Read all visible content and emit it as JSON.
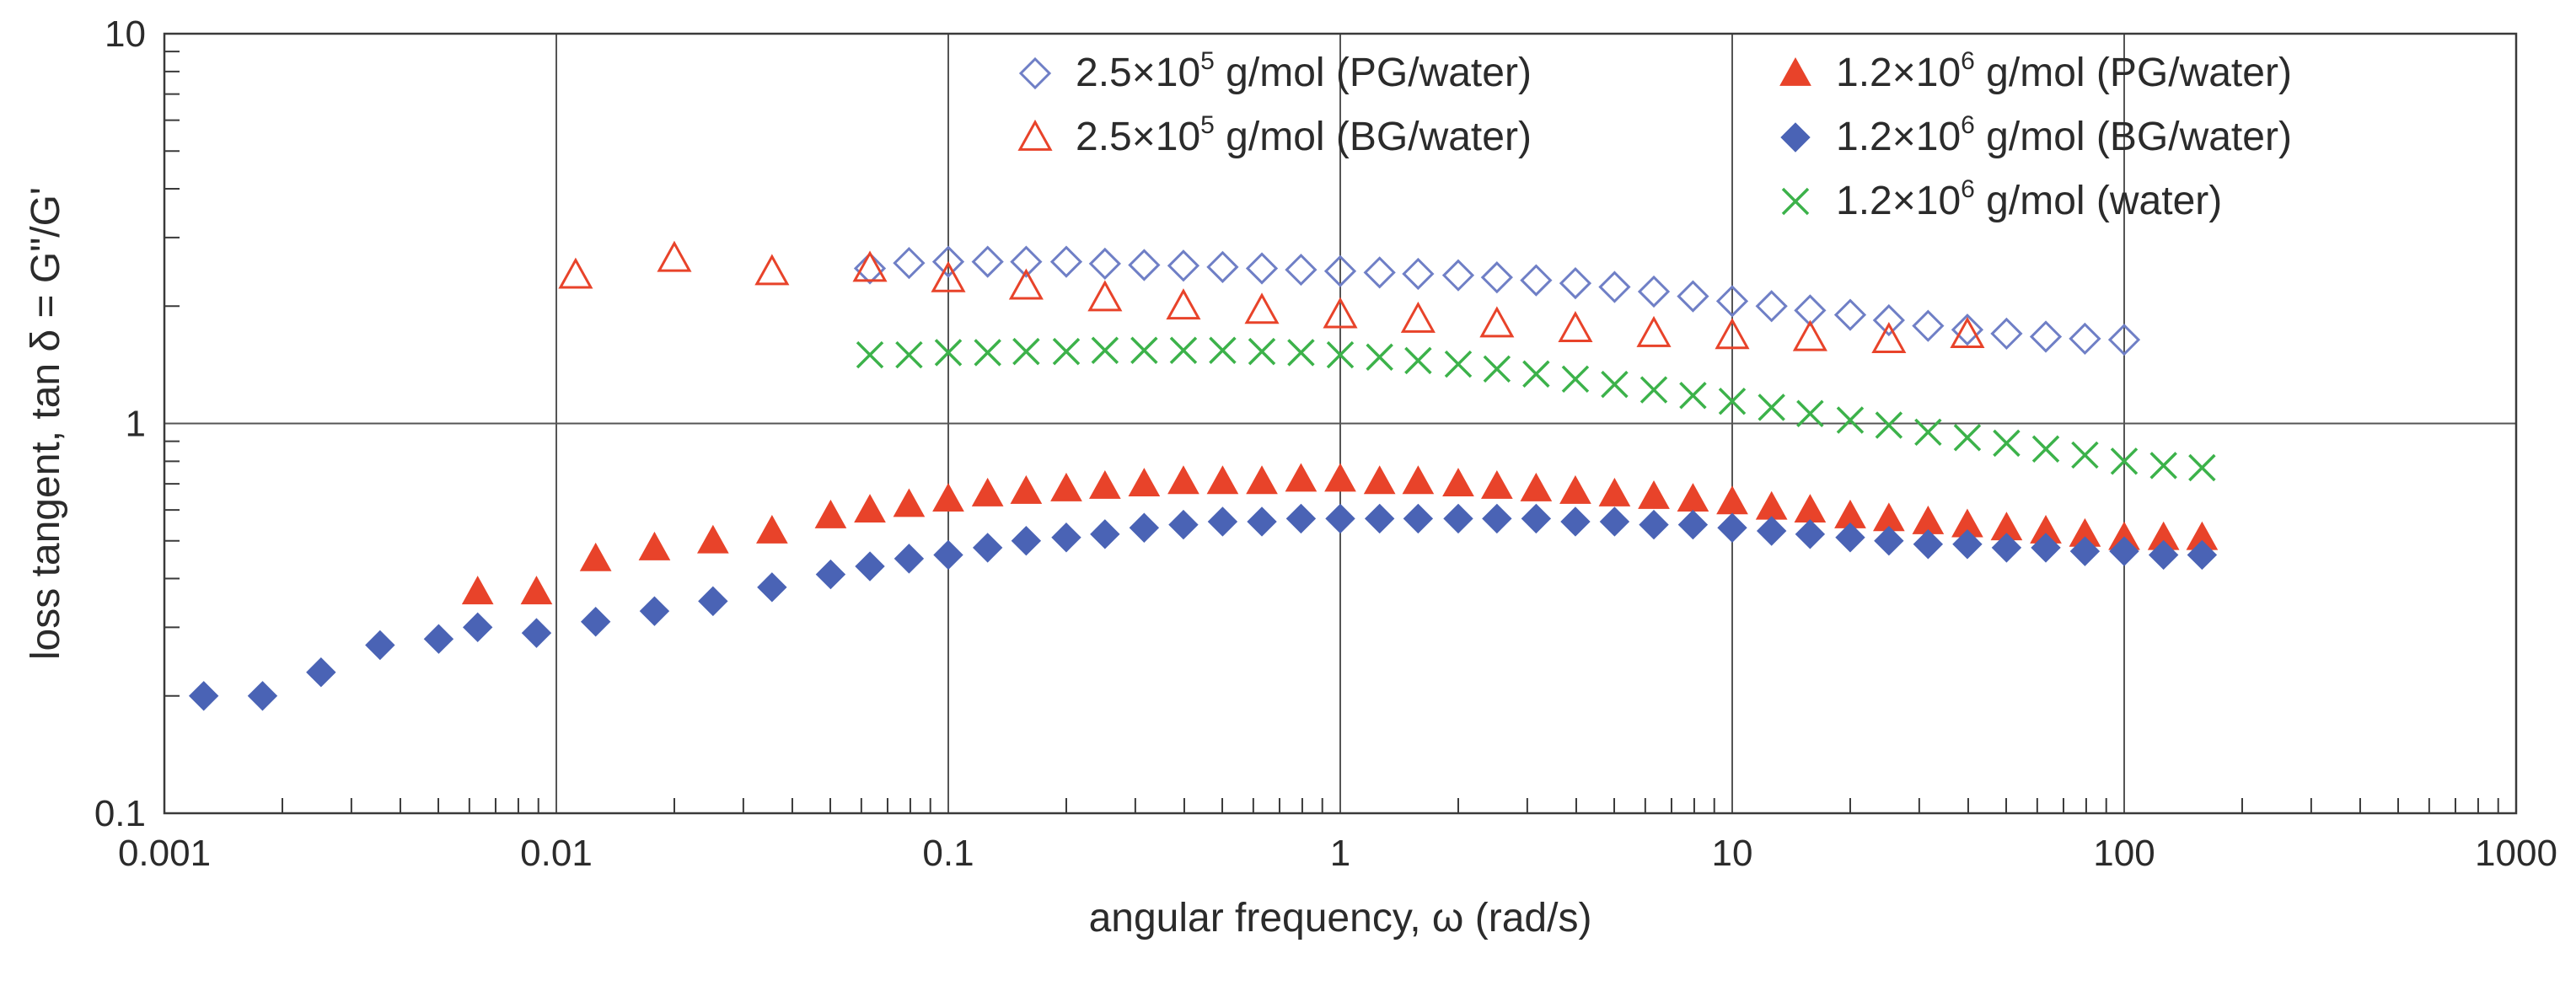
{
  "chart_data": {
    "type": "scatter",
    "title": "",
    "xlabel": "angular frequency, ω (rad/s)",
    "ylabel": "loss tangent, tan δ = G\"/G'",
    "xscale": "log",
    "yscale": "log",
    "xlim": [
      0.001,
      1000
    ],
    "ylim": [
      0.1,
      10
    ],
    "x_ticks": [
      0.001,
      0.01,
      0.1,
      1,
      10,
      100,
      1000
    ],
    "x_tick_labels": [
      "0.001",
      "0.01",
      "0.1",
      "1",
      "10",
      "100",
      "1000"
    ],
    "y_ticks": [
      0.1,
      1,
      10
    ],
    "y_tick_labels": [
      "0.1",
      "1",
      "10"
    ],
    "grid": "major decades on",
    "legend_position": "top-right, two columns",
    "series": [
      {
        "label_prefix": "2.5×10",
        "label_exp": "5",
        "label_suffix": " g/mol (PG/water)",
        "marker": "diamond-open",
        "color": "#6f7fc6",
        "x": [
          0.0631,
          0.0794,
          0.1,
          0.126,
          0.158,
          0.2,
          0.251,
          0.316,
          0.398,
          0.501,
          0.631,
          0.794,
          1.0,
          1.26,
          1.58,
          2.0,
          2.51,
          3.16,
          3.98,
          5.01,
          6.31,
          7.94,
          10.0,
          12.6,
          15.8,
          20.0,
          25.1,
          31.6,
          39.8,
          50.1,
          63.1,
          79.4,
          100.0
        ],
        "y": [
          2.5,
          2.58,
          2.6,
          2.6,
          2.6,
          2.6,
          2.57,
          2.55,
          2.54,
          2.52,
          2.5,
          2.48,
          2.46,
          2.44,
          2.42,
          2.4,
          2.37,
          2.33,
          2.29,
          2.24,
          2.18,
          2.12,
          2.06,
          2.0,
          1.95,
          1.9,
          1.84,
          1.78,
          1.74,
          1.7,
          1.67,
          1.65,
          1.64
        ]
      },
      {
        "label_prefix": "2.5×10",
        "label_exp": "5",
        "label_suffix": " g/mol (BG/water)",
        "marker": "triangle-open",
        "color": "#e8432a",
        "x": [
          0.0112,
          0.02,
          0.0355,
          0.0631,
          0.1,
          0.158,
          0.251,
          0.398,
          0.631,
          1.0,
          1.58,
          2.51,
          3.98,
          6.31,
          10.0,
          15.8,
          25.1,
          39.8
        ],
        "y": [
          2.4,
          2.65,
          2.45,
          2.5,
          2.35,
          2.25,
          2.1,
          2.0,
          1.95,
          1.9,
          1.85,
          1.8,
          1.75,
          1.7,
          1.68,
          1.66,
          1.64,
          1.69
        ]
      },
      {
        "label_prefix": "1.2×10",
        "label_exp": "6",
        "label_suffix": " g/mol (PG/water)",
        "marker": "triangle-filled",
        "color": "#e8432a",
        "x": [
          0.0063,
          0.0089,
          0.0126,
          0.0178,
          0.0251,
          0.0355,
          0.0501,
          0.0631,
          0.0794,
          0.1,
          0.126,
          0.158,
          0.2,
          0.251,
          0.316,
          0.398,
          0.501,
          0.631,
          0.794,
          1.0,
          1.26,
          1.58,
          2.0,
          2.51,
          3.16,
          3.98,
          5.01,
          6.31,
          7.94,
          10.0,
          12.6,
          15.8,
          20.0,
          25.1,
          31.6,
          39.8,
          50.1,
          63.1,
          79.4,
          100.0,
          126.0,
          158.0
        ],
        "y": [
          0.37,
          0.37,
          0.45,
          0.48,
          0.5,
          0.53,
          0.58,
          0.6,
          0.62,
          0.64,
          0.66,
          0.67,
          0.68,
          0.69,
          0.7,
          0.71,
          0.71,
          0.71,
          0.72,
          0.72,
          0.71,
          0.71,
          0.7,
          0.69,
          0.68,
          0.67,
          0.66,
          0.65,
          0.64,
          0.63,
          0.61,
          0.6,
          0.58,
          0.57,
          0.56,
          0.55,
          0.54,
          0.53,
          0.52,
          0.51,
          0.51,
          0.51
        ]
      },
      {
        "label_prefix": "1.2×10",
        "label_exp": "6",
        "label_suffix": " g/mol (BG/water)",
        "marker": "diamond-filled",
        "color": "#4a63b5",
        "x": [
          0.00126,
          0.00178,
          0.00251,
          0.00355,
          0.00501,
          0.0063,
          0.0089,
          0.0126,
          0.0178,
          0.0251,
          0.0355,
          0.0501,
          0.0631,
          0.0794,
          0.1,
          0.126,
          0.158,
          0.2,
          0.251,
          0.316,
          0.398,
          0.501,
          0.631,
          0.794,
          1.0,
          1.26,
          1.58,
          2.0,
          2.51,
          3.16,
          3.98,
          5.01,
          6.31,
          7.94,
          10.0,
          12.6,
          15.8,
          20.0,
          25.1,
          31.6,
          39.8,
          50.1,
          63.1,
          79.4,
          100.0,
          126.0,
          158.0
        ],
        "y": [
          0.2,
          0.2,
          0.23,
          0.27,
          0.28,
          0.3,
          0.29,
          0.31,
          0.33,
          0.35,
          0.38,
          0.41,
          0.43,
          0.45,
          0.46,
          0.48,
          0.5,
          0.51,
          0.52,
          0.54,
          0.55,
          0.56,
          0.56,
          0.57,
          0.57,
          0.57,
          0.57,
          0.57,
          0.57,
          0.57,
          0.56,
          0.56,
          0.55,
          0.55,
          0.54,
          0.53,
          0.52,
          0.51,
          0.5,
          0.49,
          0.49,
          0.48,
          0.48,
          0.47,
          0.47,
          0.46,
          0.46
        ]
      },
      {
        "label_prefix": "1.2×10",
        "label_exp": "6",
        "label_suffix": " g/mol (water)",
        "marker": "x",
        "color": "#3cb24a",
        "x": [
          0.0631,
          0.0794,
          0.1,
          0.126,
          0.158,
          0.2,
          0.251,
          0.316,
          0.398,
          0.501,
          0.631,
          0.794,
          1.0,
          1.26,
          1.58,
          2.0,
          2.51,
          3.16,
          3.98,
          5.01,
          6.31,
          7.94,
          10.0,
          12.6,
          15.8,
          20.0,
          25.1,
          31.6,
          39.8,
          50.1,
          63.1,
          79.4,
          100.0,
          126.0,
          158.0
        ],
        "y": [
          1.5,
          1.5,
          1.52,
          1.52,
          1.53,
          1.53,
          1.54,
          1.54,
          1.54,
          1.54,
          1.53,
          1.52,
          1.5,
          1.48,
          1.45,
          1.42,
          1.38,
          1.34,
          1.3,
          1.26,
          1.22,
          1.18,
          1.14,
          1.1,
          1.06,
          1.02,
          0.99,
          0.95,
          0.92,
          0.89,
          0.86,
          0.83,
          0.8,
          0.78,
          0.77
        ]
      }
    ]
  }
}
